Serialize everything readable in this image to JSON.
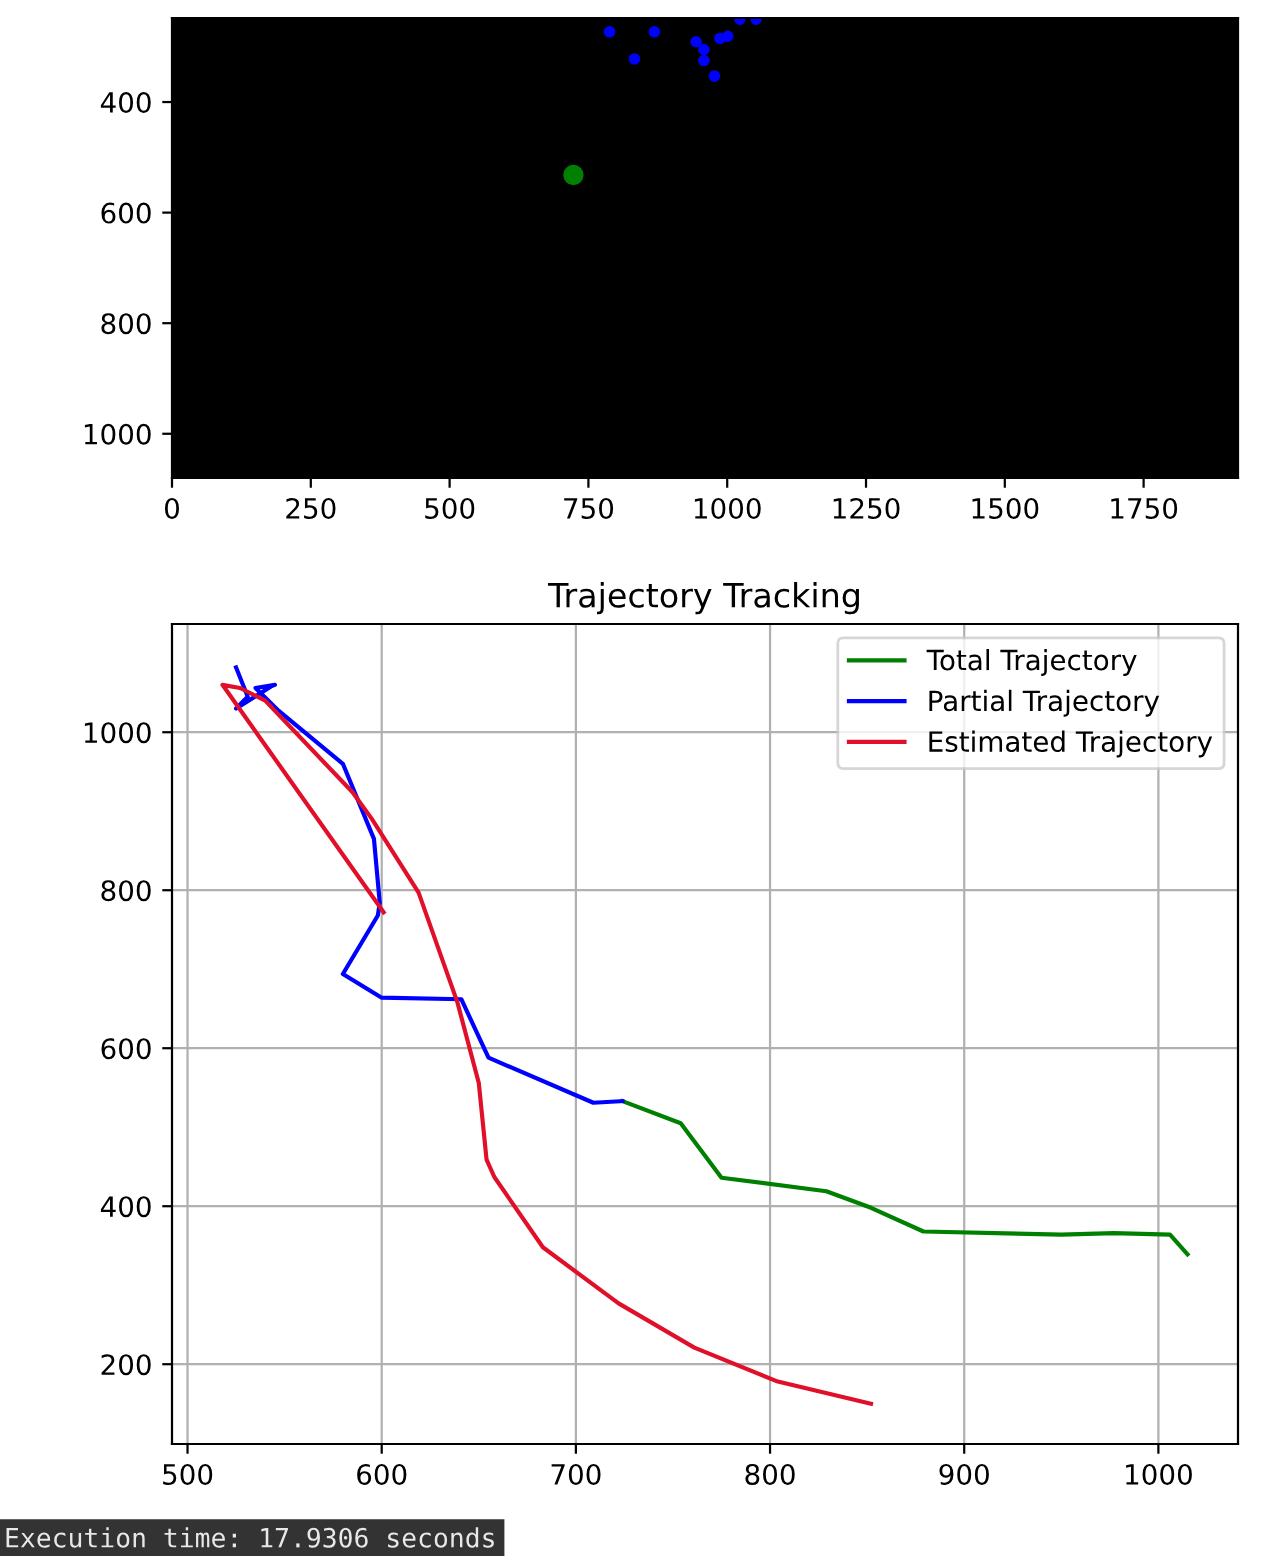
{
  "chart_data": [
    {
      "type": "scatter",
      "xlim": [
        0,
        1920
      ],
      "ylim": [
        1080,
        248
      ],
      "xticks": [
        0,
        250,
        500,
        750,
        1000,
        1250,
        1500,
        1750
      ],
      "yticks": [
        400,
        600,
        800,
        1000
      ],
      "grid": false,
      "marker": "circle",
      "series": [
        {
          "color": "#0000ff",
          "x": [
            788,
            869,
            833,
            944,
            958,
            958,
            977,
            987,
            1001,
            1023,
            1052
          ],
          "values": [
            273,
            273,
            322,
            291,
            305,
            325,
            353,
            285,
            281,
            250,
            250
          ]
        },
        {
          "color": "#008000",
          "x": [
            723
          ],
          "values": [
            532
          ]
        }
      ]
    },
    {
      "type": "line",
      "title": "Trajectory Tracking",
      "xlim": [
        492,
        1041
      ],
      "ylim": [
        99,
        1137
      ],
      "xticks": [
        500,
        600,
        700,
        800,
        900,
        1000
      ],
      "yticks": [
        200,
        400,
        600,
        800,
        1000
      ],
      "grid": true,
      "legend": "top right",
      "line_style": "solid",
      "series": [
        {
          "name": "Total Trajectory",
          "color": "#008000",
          "x": [
            724,
            754,
            775,
            829,
            852,
            879,
            950,
            977,
            1006,
            1015
          ],
          "values": [
            533,
            505,
            436,
            419,
            398,
            368,
            364,
            366,
            364,
            339
          ]
        },
        {
          "name": "Partial Trajectory",
          "color": "#0000ff",
          "x": [
            525,
            531,
            525,
            543,
            545,
            535,
            547,
            580,
            596,
            599,
            598,
            580,
            600,
            641,
            655,
            709,
            724
          ],
          "values": [
            1082,
            1045,
            1030,
            1058,
            1060,
            1056,
            1027,
            960,
            865,
            784,
            768,
            694,
            664,
            662,
            588,
            531,
            533
          ]
        },
        {
          "name": "Estimated Trajectory",
          "color": "#e0102a",
          "x": [
            601,
            518,
            527,
            540,
            585,
            595,
            619,
            639,
            650,
            654,
            658,
            683,
            722,
            761,
            804,
            852
          ],
          "values": [
            772,
            1060,
            1056,
            1040,
            924,
            890,
            797,
            658,
            556,
            459,
            437,
            348,
            277,
            221,
            178,
            150
          ]
        }
      ],
      "annotations": [
        "Execution time: 17.9306 seconds"
      ]
    }
  ]
}
